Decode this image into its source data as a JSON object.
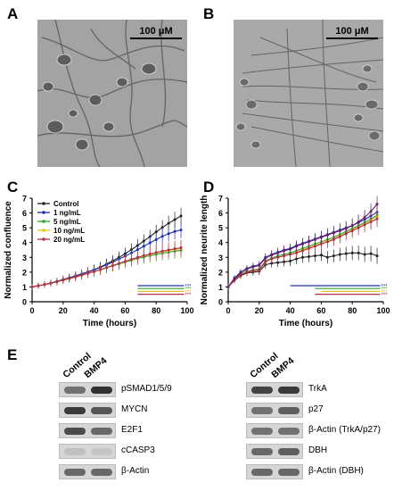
{
  "panels": {
    "a": {
      "label": "A",
      "scale_text": "100 μM"
    },
    "b": {
      "label": "B",
      "scale_text": "100 μM"
    },
    "c": {
      "label": "C"
    },
    "d": {
      "label": "D"
    },
    "e": {
      "label": "E"
    }
  },
  "chart_data": [
    {
      "type": "line",
      "ylabel": "Normalized confluence",
      "xlabel": "Time (hours)",
      "xlim": [
        0,
        100
      ],
      "ylim": [
        0,
        7
      ],
      "xticks": [
        0,
        20,
        40,
        60,
        80,
        100
      ],
      "yticks": [
        0,
        1,
        2,
        3,
        4,
        5,
        6,
        7
      ],
      "legend_position": "top-left",
      "x": [
        0,
        4,
        8,
        12,
        16,
        20,
        24,
        28,
        32,
        36,
        40,
        44,
        48,
        52,
        56,
        60,
        64,
        68,
        72,
        76,
        80,
        84,
        88,
        92,
        96
      ],
      "series": [
        {
          "name": "Control",
          "color": "#222222",
          "values": [
            1.0,
            1.08,
            1.17,
            1.27,
            1.38,
            1.5,
            1.62,
            1.75,
            1.88,
            2.02,
            2.17,
            2.35,
            2.55,
            2.77,
            3.0,
            3.25,
            3.52,
            3.8,
            4.1,
            4.4,
            4.72,
            5.02,
            5.3,
            5.55,
            5.8
          ]
        },
        {
          "name": "1 ng/mL",
          "color": "#1f2fa8",
          "values": [
            1.0,
            1.08,
            1.17,
            1.27,
            1.38,
            1.5,
            1.62,
            1.75,
            1.88,
            2.02,
            2.16,
            2.32,
            2.5,
            2.68,
            2.88,
            3.08,
            3.3,
            3.52,
            3.75,
            3.98,
            4.2,
            4.42,
            4.6,
            4.75,
            4.85
          ]
        },
        {
          "name": "5 ng/mL",
          "color": "#2ca02c",
          "values": [
            1.0,
            1.08,
            1.16,
            1.25,
            1.35,
            1.46,
            1.57,
            1.68,
            1.8,
            1.92,
            2.04,
            2.16,
            2.3,
            2.42,
            2.55,
            2.68,
            2.8,
            2.92,
            3.02,
            3.12,
            3.2,
            3.28,
            3.35,
            3.42,
            3.48
          ]
        },
        {
          "name": "10 ng/mL",
          "color": "#e8c21a",
          "values": [
            1.0,
            1.08,
            1.16,
            1.25,
            1.35,
            1.46,
            1.57,
            1.68,
            1.8,
            1.92,
            2.04,
            2.17,
            2.31,
            2.44,
            2.58,
            2.72,
            2.85,
            2.98,
            3.1,
            3.2,
            3.3,
            3.38,
            3.46,
            3.54,
            3.6
          ]
        },
        {
          "name": "20 ng/mL",
          "color": "#b0304a",
          "values": [
            1.0,
            1.08,
            1.16,
            1.25,
            1.35,
            1.46,
            1.57,
            1.68,
            1.8,
            1.92,
            2.04,
            2.17,
            2.31,
            2.45,
            2.59,
            2.73,
            2.87,
            3.0,
            3.12,
            3.23,
            3.33,
            3.42,
            3.5,
            3.58,
            3.65
          ]
        }
      ],
      "significance_bars": [
        {
          "series": "1 ng/mL",
          "x_start": 68,
          "x_end": 98,
          "color": "#1f2fa8"
        },
        {
          "series": "5 ng/mL",
          "x_start": 68,
          "x_end": 98,
          "color": "#2ca02c"
        },
        {
          "series": "10 ng/mL",
          "x_start": 68,
          "x_end": 98,
          "color": "#e8c21a"
        },
        {
          "series": "20 ng/mL",
          "x_start": 68,
          "x_end": 98,
          "color": "#b0304a"
        }
      ]
    },
    {
      "type": "line",
      "ylabel": "Normalized neurite length",
      "xlabel": "Time (hours)",
      "xlim": [
        0,
        100
      ],
      "ylim": [
        0,
        7
      ],
      "xticks": [
        0,
        20,
        40,
        60,
        80,
        100
      ],
      "yticks": [
        0,
        1,
        2,
        3,
        4,
        5,
        6,
        7
      ],
      "x": [
        0,
        4,
        8,
        12,
        16,
        20,
        24,
        28,
        32,
        36,
        40,
        44,
        48,
        52,
        56,
        60,
        64,
        68,
        72,
        76,
        80,
        84,
        88,
        92,
        96
      ],
      "series": [
        {
          "name": "Control",
          "color": "#222222",
          "values": [
            1.0,
            1.45,
            1.75,
            1.95,
            2.0,
            2.05,
            2.5,
            2.6,
            2.65,
            2.7,
            2.75,
            2.9,
            3.0,
            3.05,
            3.1,
            3.15,
            3.0,
            3.1,
            3.2,
            3.25,
            3.3,
            3.3,
            3.2,
            3.25,
            3.1
          ]
        },
        {
          "name": "1 ng/mL",
          "color": "#1f2fa8",
          "values": [
            1.0,
            1.6,
            2.0,
            2.25,
            2.4,
            2.5,
            3.0,
            3.2,
            3.35,
            3.5,
            3.6,
            3.8,
            3.95,
            4.1,
            4.25,
            4.4,
            4.55,
            4.7,
            4.85,
            5.0,
            5.15,
            5.35,
            5.55,
            5.8,
            6.05
          ]
        },
        {
          "name": "5 ng/mL",
          "color": "#2ca02c",
          "values": [
            1.0,
            1.5,
            1.85,
            2.05,
            2.15,
            2.2,
            2.75,
            2.95,
            3.1,
            3.2,
            3.3,
            3.45,
            3.6,
            3.75,
            3.9,
            4.05,
            4.2,
            4.35,
            4.55,
            4.75,
            4.95,
            5.15,
            5.35,
            5.6,
            5.85
          ]
        },
        {
          "name": "10 ng/mL",
          "color": "#e8c21a",
          "values": [
            1.0,
            1.45,
            1.8,
            2.0,
            2.1,
            2.15,
            2.7,
            2.9,
            3.0,
            3.1,
            3.2,
            3.35,
            3.5,
            3.65,
            3.8,
            3.95,
            4.1,
            4.25,
            4.45,
            4.65,
            4.85,
            5.05,
            5.25,
            5.5,
            5.75
          ]
        },
        {
          "name": "20 ng/mL",
          "color": "#b0304a",
          "values": [
            1.0,
            1.45,
            1.8,
            2.0,
            2.1,
            2.15,
            2.7,
            2.9,
            3.0,
            3.1,
            3.2,
            3.3,
            3.45,
            3.6,
            3.75,
            3.9,
            4.05,
            4.2,
            4.4,
            4.6,
            4.8,
            5.0,
            5.2,
            5.4,
            5.6
          ]
        },
        {
          "name": "",
          "color": "#6b1f6b",
          "values": [
            1.0,
            1.55,
            1.95,
            2.2,
            2.35,
            2.45,
            2.95,
            3.15,
            3.3,
            3.45,
            3.55,
            3.75,
            3.9,
            4.05,
            4.2,
            4.35,
            4.5,
            4.65,
            4.8,
            4.95,
            5.15,
            5.4,
            5.7,
            6.1,
            6.6
          ]
        }
      ],
      "significance_bars": [
        {
          "x_start": 40,
          "x_end": 98,
          "color": "#1f2fa8"
        },
        {
          "x_start": 56,
          "x_end": 98,
          "color": "#2ca02c"
        },
        {
          "x_start": 60,
          "x_end": 98,
          "color": "#e8c21a"
        },
        {
          "x_start": 56,
          "x_end": 98,
          "color": "#b0304a"
        }
      ]
    }
  ],
  "blots": {
    "columns": [
      "Control",
      "BMP4"
    ],
    "left": [
      {
        "label": "pSMAD1/5/9",
        "ctrl": 0.55,
        "treat": 0.9
      },
      {
        "label": "MYCN",
        "ctrl": 0.85,
        "treat": 0.7
      },
      {
        "label": "E2F1",
        "ctrl": 0.75,
        "treat": 0.6
      },
      {
        "label": "cCASP3",
        "ctrl": 0.12,
        "treat": 0.1
      },
      {
        "label": "β-Actin",
        "ctrl": 0.6,
        "treat": 0.6
      }
    ],
    "right": [
      {
        "label": "TrkA",
        "ctrl": 0.8,
        "treat": 0.85
      },
      {
        "label": "p27",
        "ctrl": 0.55,
        "treat": 0.65
      },
      {
        "label": "β-Actin (TrkA/p27)",
        "ctrl": 0.55,
        "treat": 0.55
      },
      {
        "label": "DBH",
        "ctrl": 0.6,
        "treat": 0.65
      },
      {
        "label": "β-Actin (DBH)",
        "ctrl": 0.6,
        "treat": 0.6
      }
    ]
  }
}
